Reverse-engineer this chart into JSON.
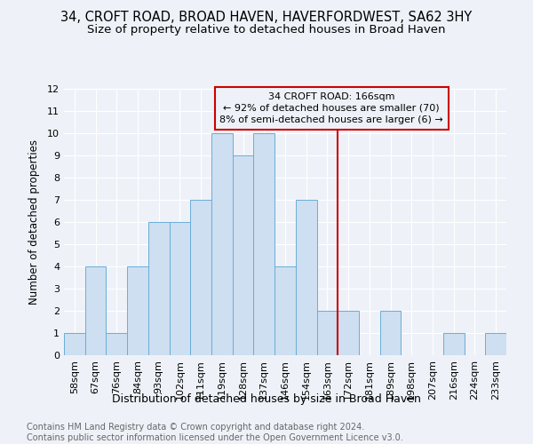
{
  "title": "34, CROFT ROAD, BROAD HAVEN, HAVERFORDWEST, SA62 3HY",
  "subtitle": "Size of property relative to detached houses in Broad Haven",
  "xlabel": "Distribution of detached houses by size in Broad Haven",
  "ylabel": "Number of detached properties",
  "bar_labels": [
    "58sqm",
    "67sqm",
    "76sqm",
    "84sqm",
    "93sqm",
    "102sqm",
    "111sqm",
    "119sqm",
    "128sqm",
    "137sqm",
    "146sqm",
    "154sqm",
    "163sqm",
    "172sqm",
    "181sqm",
    "189sqm",
    "198sqm",
    "207sqm",
    "216sqm",
    "224sqm",
    "233sqm"
  ],
  "bar_values": [
    1,
    4,
    1,
    4,
    6,
    6,
    7,
    10,
    9,
    10,
    4,
    7,
    2,
    2,
    0,
    2,
    0,
    0,
    1,
    0,
    1
  ],
  "bar_color": "#cddff0",
  "bar_edge_color": "#6aaed6",
  "property_line_x": 12.5,
  "property_line_color": "#cc0000",
  "annotation_text": "34 CROFT ROAD: 166sqm\n← 92% of detached houses are smaller (70)\n8% of semi-detached houses are larger (6) →",
  "annotation_box_color": "#cc0000",
  "ylim": [
    0,
    12
  ],
  "yticks": [
    0,
    1,
    2,
    3,
    4,
    5,
    6,
    7,
    8,
    9,
    10,
    11,
    12
  ],
  "footer": "Contains HM Land Registry data © Crown copyright and database right 2024.\nContains public sector information licensed under the Open Government Licence v3.0.",
  "bg_color": "#eef2f8",
  "grid_color": "#ffffff",
  "title_fontsize": 10.5,
  "subtitle_fontsize": 9.5,
  "xlabel_fontsize": 9,
  "ylabel_fontsize": 8.5,
  "tick_fontsize": 8,
  "annotation_fontsize": 8,
  "footer_fontsize": 7
}
